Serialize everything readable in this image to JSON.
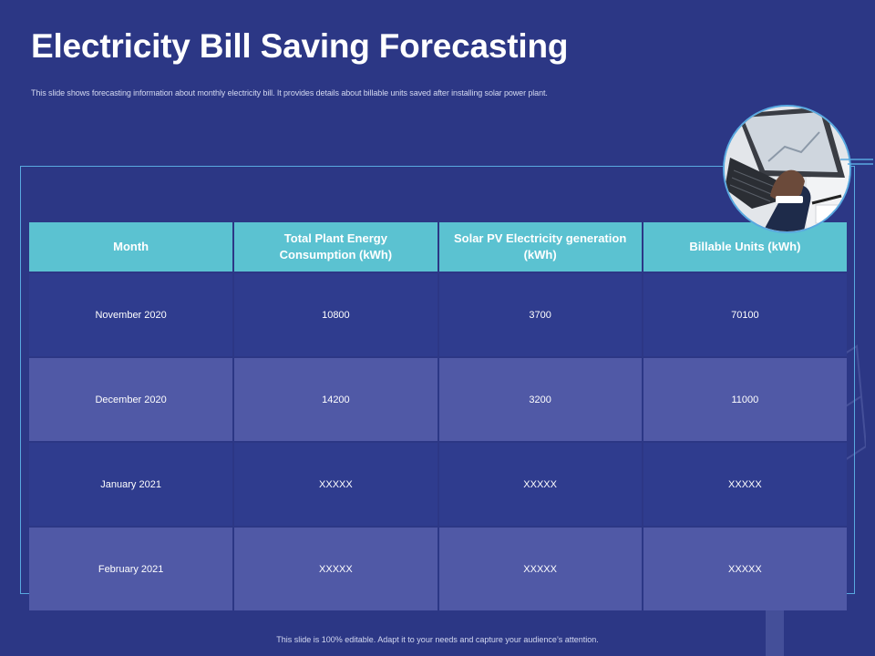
{
  "slide": {
    "title": "Electricity Bill Saving Forecasting",
    "subtitle": "This slide shows forecasting information about monthly electricity bill. It provides details about billable units saved after installing solar power plant.",
    "footer": "This slide is 100% editable. Adapt it to your needs and capture your audience’s attention."
  },
  "table": {
    "headers": [
      "Month",
      "Total Plant Energy Consumption (kWh)",
      "Solar PV Electricity generation (kWh)",
      "Billable Units (kWh)"
    ],
    "rows": [
      [
        "November 2020",
        "10800",
        "3700",
        "70100"
      ],
      [
        "December 2020",
        "14200",
        "3200",
        "11000"
      ],
      [
        "January 2021",
        "XXXXX",
        "XXXXX",
        "XXXXX"
      ],
      [
        "February 2021",
        "XXXXX",
        "XXXXX",
        "XXXXX"
      ]
    ]
  },
  "colors": {
    "background": "#2c3785",
    "header": "#5bc2d1",
    "row_light": "#5059a6",
    "row_dark": "#2f3c8e",
    "accent_line": "#59a9e0"
  }
}
